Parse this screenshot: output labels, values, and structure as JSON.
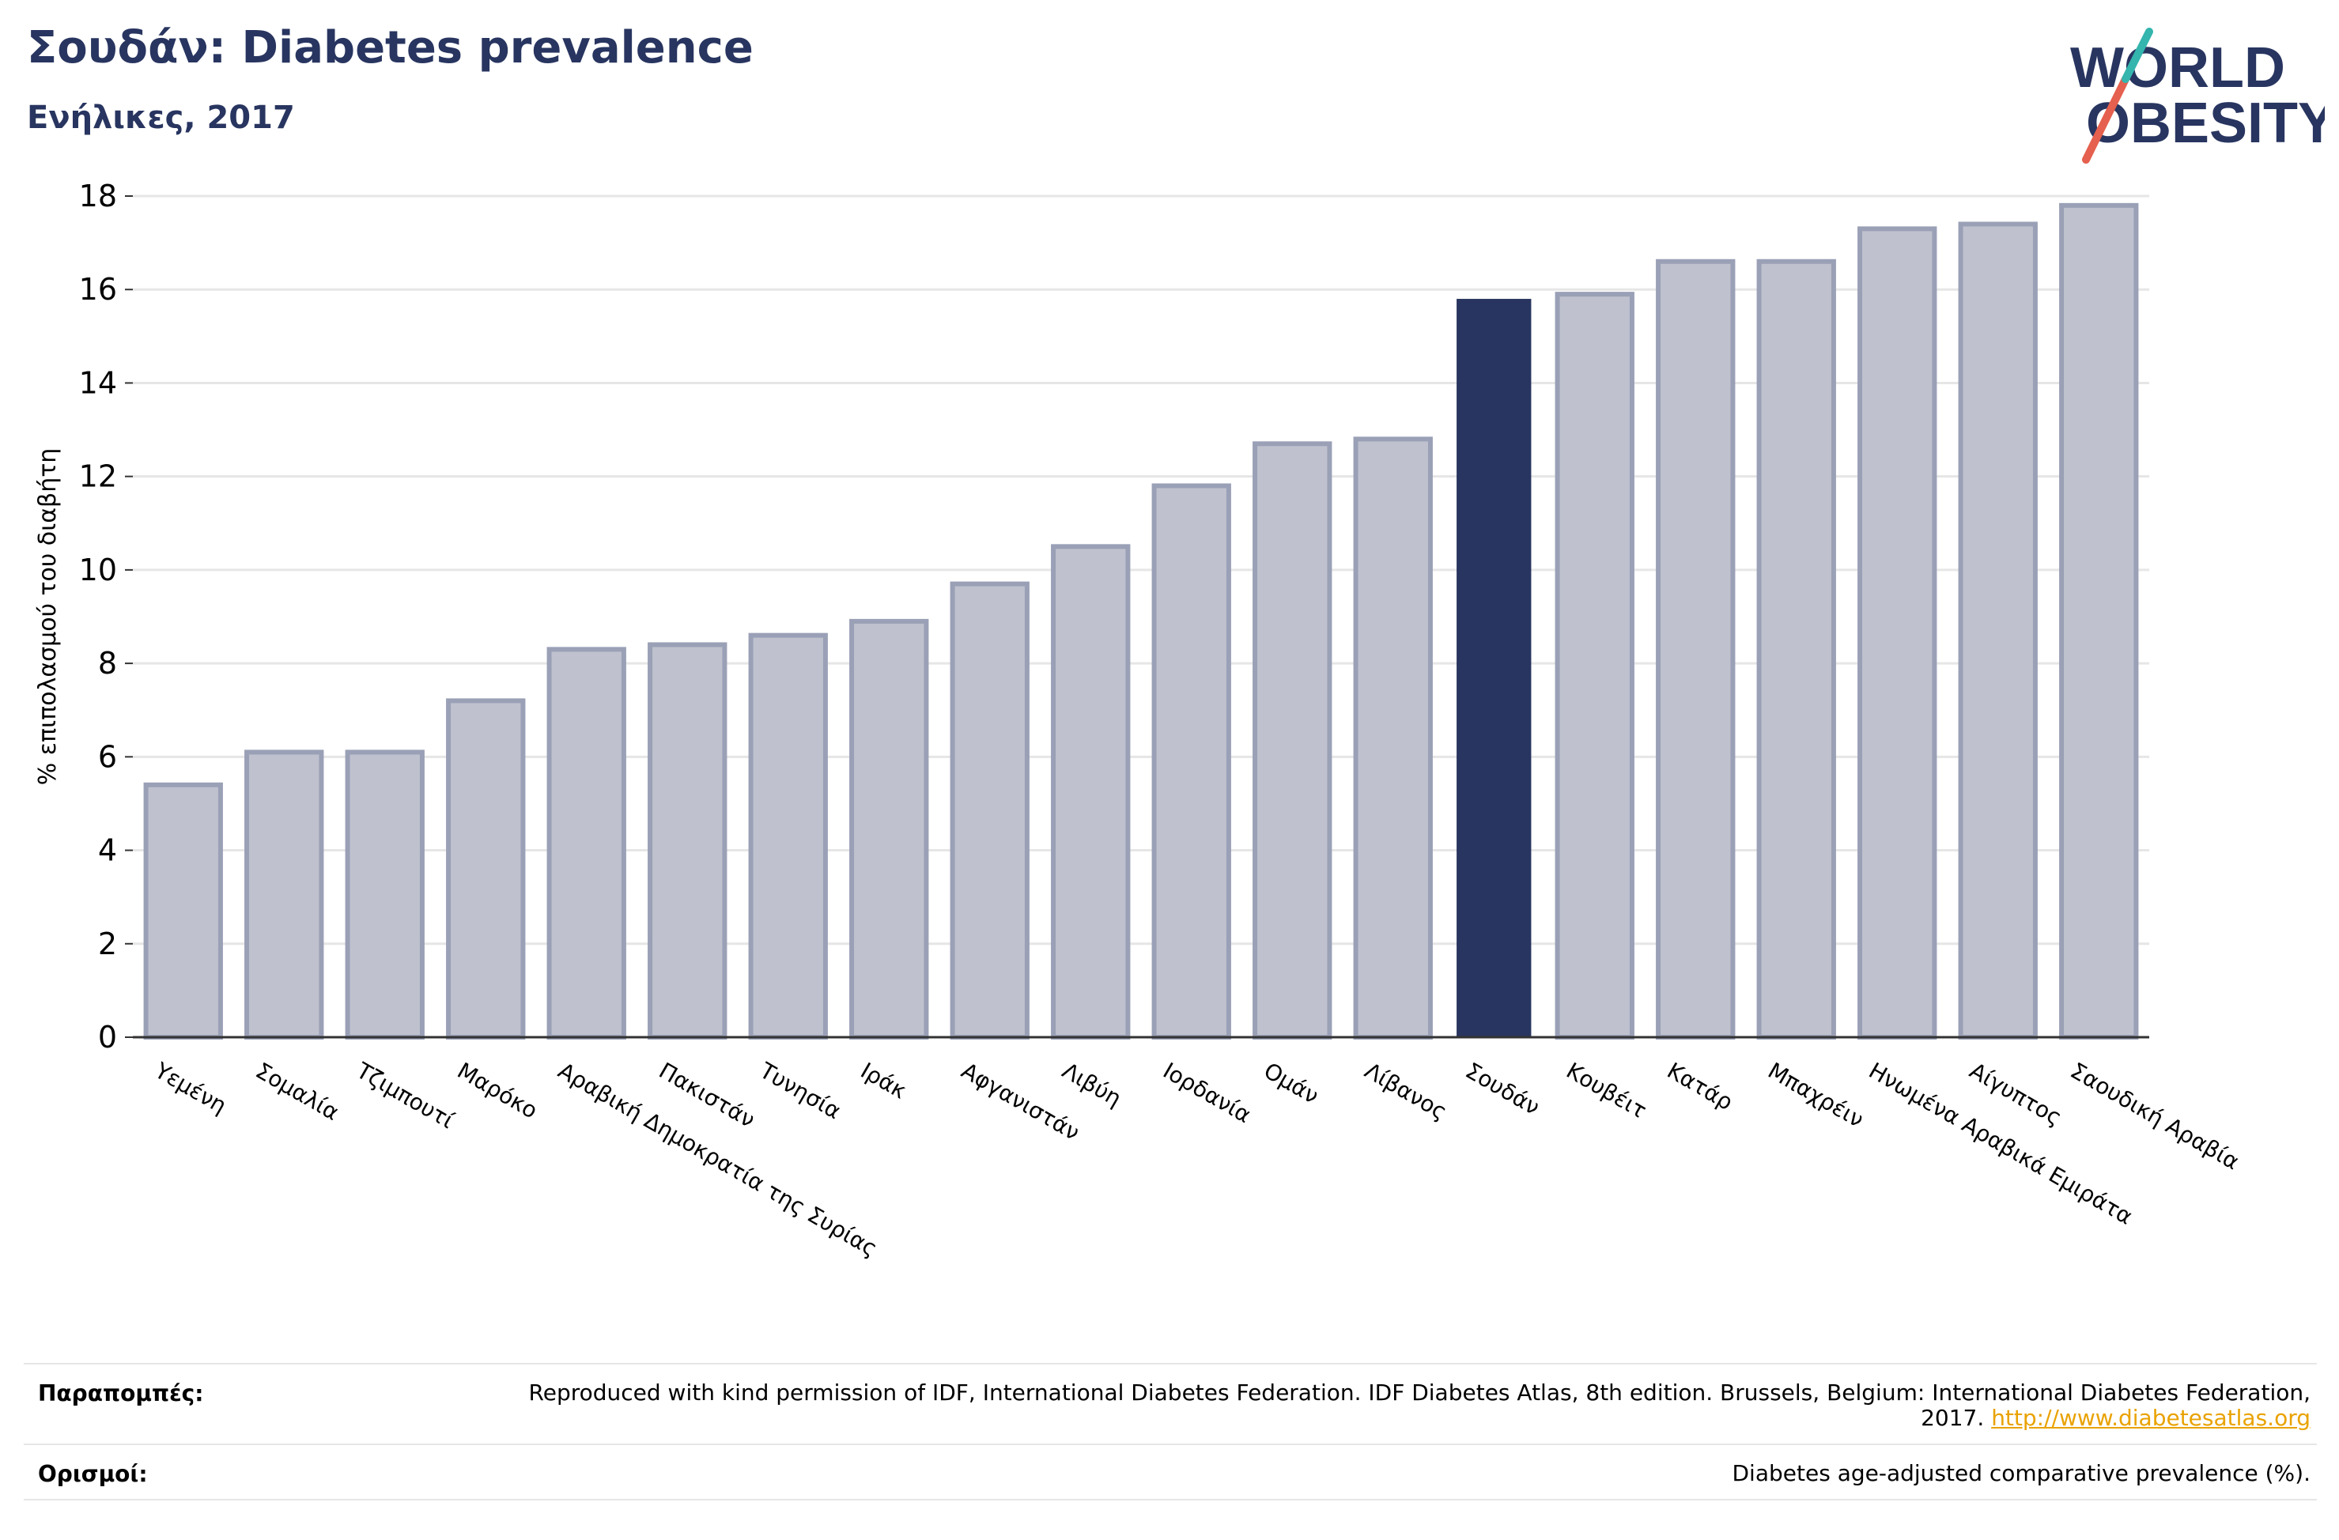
{
  "header": {
    "title": "Σουδάν: Diabetes prevalence",
    "subtitle": "Ενήλικες, 2017"
  },
  "logo": {
    "line1": "WORLD",
    "line2": "OBESITY",
    "text_color": "#283560",
    "slash_colors": [
      "#e5604e",
      "#34b5ae"
    ]
  },
  "colors": {
    "bar_fill": "#bfc2ce",
    "bar_stroke": "#9aa0b6",
    "highlight": "#283560",
    "grid": "#e6e6e6",
    "axis": "#333333"
  },
  "chart_data": {
    "type": "bar",
    "title": "Σουδάν: Diabetes prevalence",
    "subtitle": "Ενήλικες, 2017",
    "ylabel": "% επιπολασμού του διαβήτη",
    "xlabel": "",
    "ylim": [
      0,
      18
    ],
    "yticks": [
      0,
      2,
      4,
      6,
      8,
      10,
      12,
      14,
      16,
      18
    ],
    "grid": true,
    "highlight_category": "Σουδάν",
    "categories": [
      "Υεμένη",
      "Σομαλία",
      "Τζιμπουτί",
      "Μαρόκο",
      "Αραβική Δημοκρατία της Συρίας",
      "Πακιστάν",
      "Τυνησία",
      "Ιράκ",
      "Αφγανιστάν",
      "Λιβύη",
      "Ιορδανία",
      "Ομάν",
      "Λίβανος",
      "Σουδάν",
      "Κουβέιτ",
      "Κατάρ",
      "Μπαχρέιν",
      "Ηνωμένα Αραβικά Εμιράτα",
      "Αίγυπτος",
      "Σαουδική Αραβία"
    ],
    "values": [
      5.4,
      6.1,
      6.1,
      7.2,
      8.3,
      8.4,
      8.6,
      8.9,
      9.7,
      10.5,
      11.8,
      12.7,
      12.8,
      15.8,
      15.9,
      16.6,
      16.6,
      17.3,
      17.4,
      17.8
    ]
  },
  "footer": {
    "references_label": "Παραπομπές:",
    "references_text": "Reproduced with kind permission of IDF, International Diabetes Federation. IDF Diabetes Atlas, 8th edition. Brussels, Belgium: International Diabetes Federation, 2017.",
    "references_link": "http://www.diabetesatlas.org",
    "definitions_label": "Ορισμοί:",
    "definitions_text": "Diabetes age-adjusted comparative prevalence (%)."
  }
}
